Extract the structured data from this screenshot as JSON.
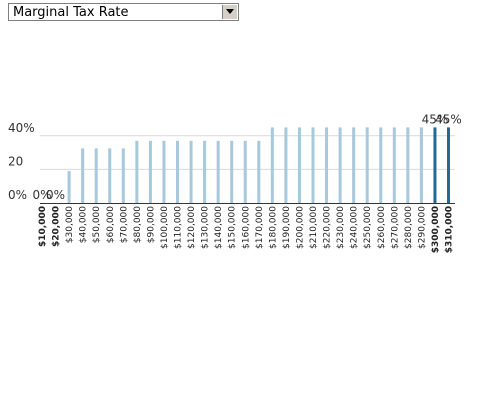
{
  "selector": {
    "selected": "Marginal Tax Rate",
    "arrow_icon": "triangle-down-icon"
  },
  "chart_data": {
    "type": "bar",
    "title": "",
    "xlabel": "",
    "ylabel": "",
    "ylim": [
      0,
      50
    ],
    "y_ticks": [
      {
        "value": 0,
        "label": "0%"
      },
      {
        "value": 20,
        "label": "20"
      },
      {
        "value": 40,
        "label": "40%"
      }
    ],
    "grid": true,
    "categories": [
      "$10,000",
      "$20,000",
      "$30,000",
      "$40,000",
      "$50,000",
      "$60,000",
      "$70,000",
      "$80,000",
      "$90,000",
      "$100,000",
      "$110,000",
      "$120,000",
      "$130,000",
      "$140,000",
      "$150,000",
      "$160,000",
      "$170,000",
      "$180,000",
      "$190,000",
      "$200,000",
      "$210,000",
      "$220,000",
      "$230,000",
      "$240,000",
      "$250,000",
      "$260,000",
      "$270,000",
      "$280,000",
      "$290,000",
      "$300,000",
      "$310,000"
    ],
    "values": [
      0,
      0,
      19,
      32.5,
      32.5,
      32.5,
      32.5,
      37,
      37,
      37,
      37,
      37,
      37,
      37,
      37,
      37,
      37,
      45,
      45,
      45,
      45,
      45,
      45,
      45,
      45,
      45,
      45,
      45,
      45,
      45,
      45
    ],
    "highlighted": [
      0,
      1,
      29,
      30
    ],
    "data_labels": [
      {
        "index": 0,
        "text": "0%"
      },
      {
        "index": 1,
        "text": "0%"
      },
      {
        "index": 29,
        "text": "45%"
      },
      {
        "index": 30,
        "text": "45%"
      }
    ],
    "colors": {
      "bar": "#a8c8dc",
      "highlight": "#1f6a9a",
      "grid": "#d9d9d9",
      "axis": "#333333"
    }
  }
}
